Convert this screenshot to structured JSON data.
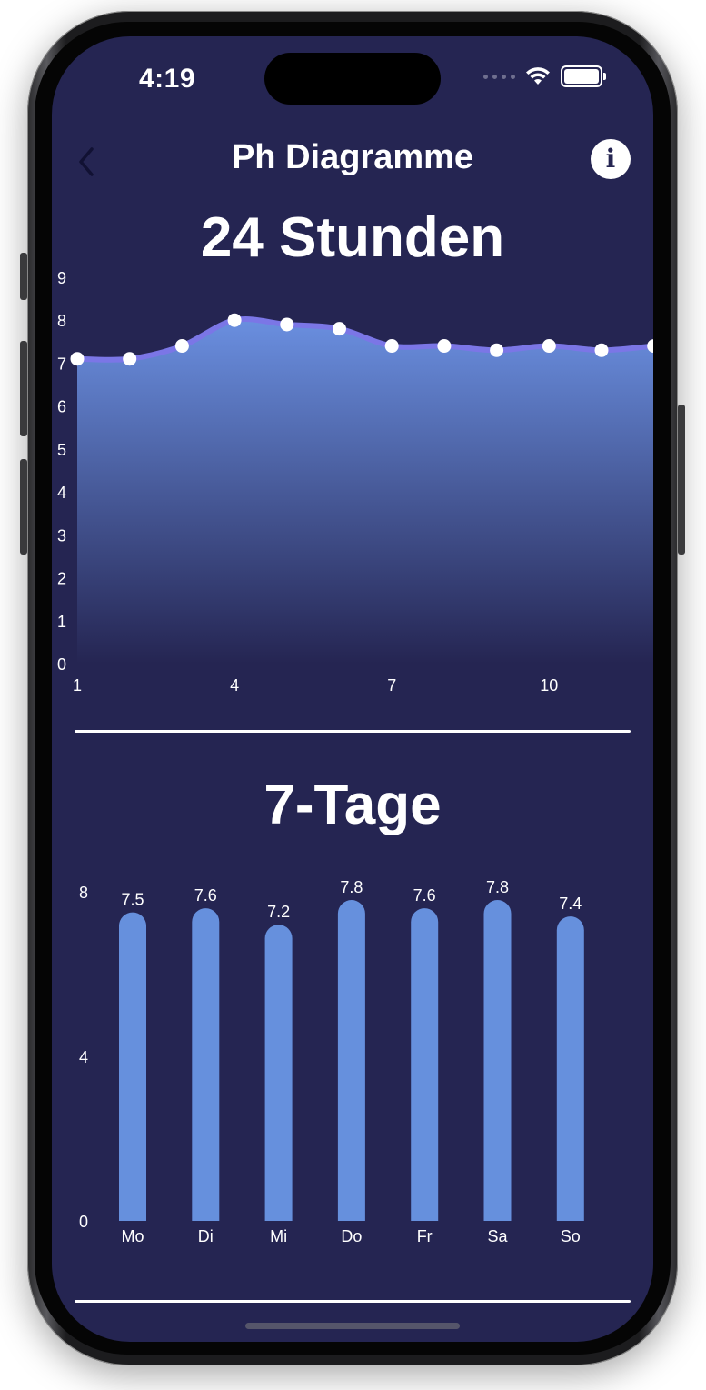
{
  "status_bar": {
    "time": "4:19"
  },
  "nav": {
    "title": "Ph Diagramme",
    "info_icon": "i"
  },
  "colors": {
    "background": "#252552",
    "line": "#7b76e6",
    "area_top": "#6a8fe0",
    "bar": "#6690dd"
  },
  "chart_data": [
    {
      "type": "area",
      "title": "24 Stunden",
      "x": [
        1,
        2,
        3,
        4,
        5,
        6,
        7,
        8,
        9,
        10,
        11,
        12
      ],
      "values": [
        7.1,
        7.1,
        7.4,
        8.0,
        7.9,
        7.8,
        7.4,
        7.4,
        7.3,
        7.4,
        7.3,
        7.4
      ],
      "x_tick_labels": [
        "1",
        "4",
        "7",
        "10"
      ],
      "x_ticks": [
        1,
        4,
        7,
        10
      ],
      "y_tick_labels": [
        "0",
        "1",
        "2",
        "3",
        "4",
        "5",
        "6",
        "7",
        "8",
        "9"
      ],
      "ylim": [
        0,
        9
      ],
      "grid": false,
      "markers": true
    },
    {
      "type": "bar",
      "title": "7-Tage",
      "categories": [
        "Mo",
        "Di",
        "Mi",
        "Do",
        "Fr",
        "Sa",
        "So"
      ],
      "values": [
        7.5,
        7.6,
        7.2,
        7.8,
        7.6,
        7.8,
        7.4
      ],
      "value_labels": [
        "7.5",
        "7.6",
        "7.2",
        "7.8",
        "7.6",
        "7.8",
        "7.4"
      ],
      "y_tick_labels": [
        "0",
        "4",
        "8"
      ],
      "y_ticks": [
        0,
        4,
        8
      ],
      "ylim": [
        0,
        8
      ],
      "grid": false
    }
  ]
}
